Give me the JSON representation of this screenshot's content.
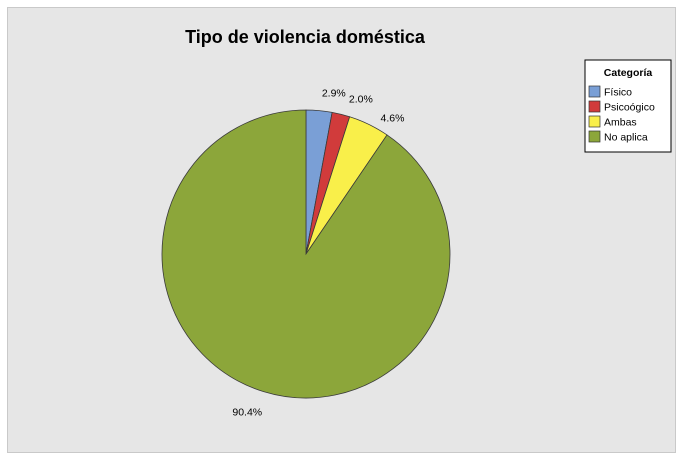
{
  "chart_data": {
    "type": "pie",
    "title": "Tipo de violencia doméstica",
    "legend_title": "Categoría",
    "legend_position": "top-right",
    "categories": [
      "Físico",
      "Psicoógico",
      "Ambas",
      "No aplica"
    ],
    "values": [
      2.9,
      2.0,
      4.6,
      90.4
    ],
    "labels": [
      "2.9%",
      "2.0%",
      "4.6%",
      "90.4%"
    ],
    "colors": [
      "#7a9fd6",
      "#d13b3b",
      "#f9ef4a",
      "#8ca63a"
    ]
  }
}
